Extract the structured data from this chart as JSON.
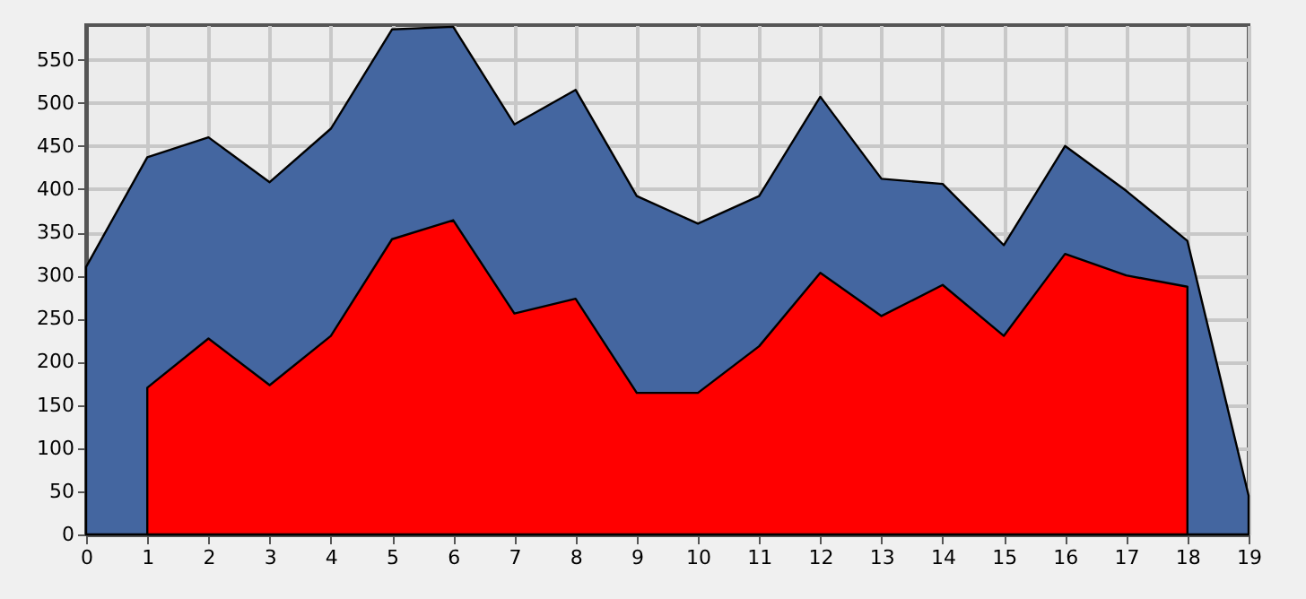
{
  "chart_data": {
    "type": "area",
    "x": [
      0,
      1,
      2,
      3,
      4,
      5,
      6,
      7,
      8,
      9,
      10,
      11,
      12,
      13,
      14,
      15,
      16,
      17,
      18,
      19
    ],
    "series": [
      {
        "color": "#4466a0",
        "values": [
          310,
          437,
          460,
          408,
          470,
          585,
          588,
          475,
          515,
          392,
          360,
          392,
          507,
          412,
          406,
          335,
          450,
          398,
          340,
          45
        ]
      },
      {
        "color": "#ff0000",
        "values": [
          null,
          170,
          227,
          173,
          230,
          342,
          364,
          256,
          273,
          164,
          164,
          218,
          303,
          253,
          289,
          230,
          325,
          300,
          287,
          null
        ]
      }
    ],
    "xlim": [
      0,
      19
    ],
    "xticks": [
      0,
      1,
      2,
      3,
      4,
      5,
      6,
      7,
      8,
      9,
      10,
      11,
      12,
      13,
      14,
      15,
      16,
      17,
      18,
      19
    ],
    "ylim": [
      0,
      590
    ],
    "yticks": [
      0,
      50,
      100,
      150,
      200,
      250,
      300,
      350,
      400,
      450,
      500,
      550
    ],
    "grid": true
  }
}
